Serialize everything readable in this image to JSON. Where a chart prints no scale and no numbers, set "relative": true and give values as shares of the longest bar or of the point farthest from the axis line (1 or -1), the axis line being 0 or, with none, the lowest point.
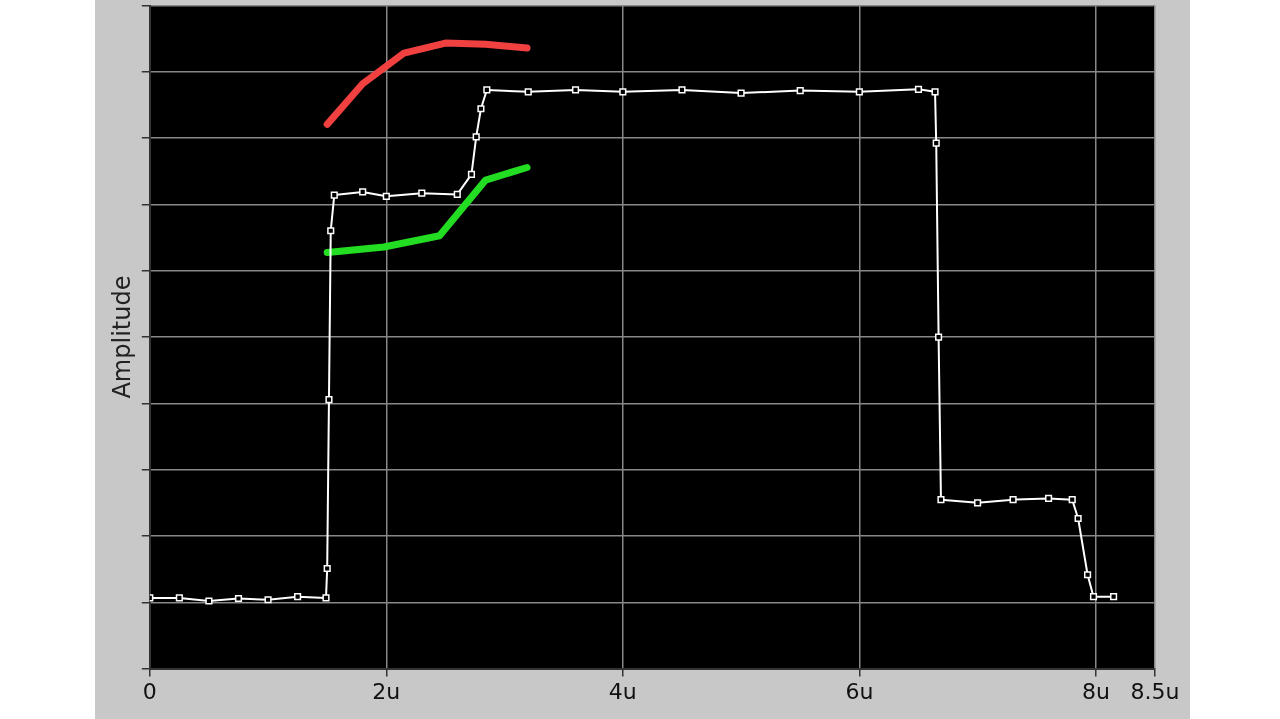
{
  "chart_data": {
    "type": "line",
    "ylabel": "Amplitude",
    "relative": true,
    "grid": true,
    "legend": false,
    "line_style": "solid",
    "xlim": [
      0,
      8.5
    ],
    "xticks": [
      0,
      {
        "value": 2,
        "label": "2u"
      },
      {
        "value": 4,
        "label": "4u"
      },
      {
        "value": 6,
        "label": "6u"
      },
      {
        "value": 8,
        "label": "8u"
      },
      {
        "value": 8.5,
        "label": "8.5u"
      }
    ],
    "series": [
      {
        "color": "#ffffff",
        "marker": "square",
        "x": [
          0,
          0.25,
          0.5,
          0.75,
          1.0,
          1.25,
          1.49,
          1.5,
          1.515,
          1.53,
          1.56,
          1.8,
          2.0,
          2.3,
          2.6,
          2.72,
          2.76,
          2.8,
          2.85,
          3.2,
          3.6,
          4.0,
          4.5,
          5.0,
          5.5,
          6.0,
          6.5,
          6.64,
          6.65,
          6.67,
          6.69,
          7.0,
          7.3,
          7.6,
          7.8,
          7.85,
          7.93,
          7.98,
          8.15
        ],
        "values": [
          0.113,
          0.113,
          0.108,
          0.112,
          0.11,
          0.115,
          0.113,
          0.16,
          0.43,
          0.7,
          0.757,
          0.762,
          0.755,
          0.76,
          0.758,
          0.79,
          0.85,
          0.895,
          0.925,
          0.922,
          0.925,
          0.922,
          0.925,
          0.92,
          0.924,
          0.922,
          0.926,
          0.922,
          0.84,
          0.53,
          0.27,
          0.265,
          0.27,
          0.272,
          0.27,
          0.24,
          0.15,
          0.115,
          0.115
        ]
      },
      {
        "color": "#f04040",
        "marker": "none",
        "x": [
          1.5,
          1.8,
          2.15,
          2.5,
          2.84,
          3.19
        ],
        "values": [
          0.87,
          0.935,
          0.984,
          1,
          0.998,
          0.992
        ]
      },
      {
        "color": "#22dd22",
        "marker": "none",
        "x": [
          1.5,
          1.98,
          2.45,
          2.63,
          2.84,
          3.19
        ],
        "values": [
          0.665,
          0.674,
          0.692,
          0.733,
          0.781,
          0.801
        ]
      }
    ]
  }
}
